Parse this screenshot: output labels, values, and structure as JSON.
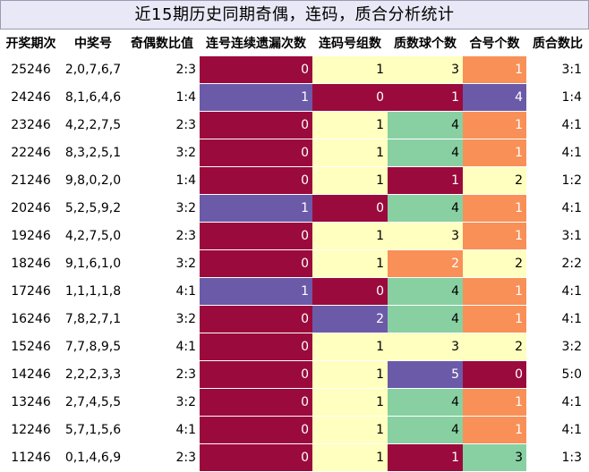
{
  "title": "近15期历史同期奇偶，连码，质合分析统计",
  "headers": [
    "开奖期次",
    "中奖号",
    "奇偶数比值",
    "连号连续遗漏次数",
    "连码号组数",
    "质数球个数",
    "合号个数",
    "质合数比"
  ],
  "colors": {
    "maroon": "#9b0a3c",
    "purple": "#6b5aa8",
    "cream": "#ffffbf",
    "green": "#88d0a2",
    "orange": "#f89058"
  },
  "rows": [
    {
      "period": "25246",
      "numbers": "2,0,7,6,7",
      "odd_even": "2:3",
      "streak": "0",
      "streak_color": "maroon",
      "groups": "1",
      "groups_color": "cream",
      "primes": "3",
      "primes_color": "cream",
      "composites": "1",
      "composites_color": "orange",
      "ratio": "3:1"
    },
    {
      "period": "24246",
      "numbers": "8,1,6,4,6",
      "odd_even": "1:4",
      "streak": "1",
      "streak_color": "purple",
      "groups": "0",
      "groups_color": "maroon",
      "primes": "1",
      "primes_color": "maroon",
      "composites": "4",
      "composites_color": "purple",
      "ratio": "1:4"
    },
    {
      "period": "23246",
      "numbers": "4,2,2,7,5",
      "odd_even": "2:3",
      "streak": "0",
      "streak_color": "maroon",
      "groups": "1",
      "groups_color": "cream",
      "primes": "4",
      "primes_color": "green",
      "composites": "1",
      "composites_color": "orange",
      "ratio": "4:1"
    },
    {
      "period": "22246",
      "numbers": "8,3,2,5,1",
      "odd_even": "3:2",
      "streak": "0",
      "streak_color": "maroon",
      "groups": "1",
      "groups_color": "cream",
      "primes": "4",
      "primes_color": "green",
      "composites": "1",
      "composites_color": "orange",
      "ratio": "4:1"
    },
    {
      "period": "21246",
      "numbers": "9,8,0,2,0",
      "odd_even": "1:4",
      "streak": "0",
      "streak_color": "maroon",
      "groups": "1",
      "groups_color": "cream",
      "primes": "1",
      "primes_color": "maroon",
      "composites": "2",
      "composites_color": "cream",
      "ratio": "1:2"
    },
    {
      "period": "20246",
      "numbers": "5,2,5,9,2",
      "odd_even": "3:2",
      "streak": "1",
      "streak_color": "purple",
      "groups": "0",
      "groups_color": "maroon",
      "primes": "4",
      "primes_color": "green",
      "composites": "1",
      "composites_color": "orange",
      "ratio": "4:1"
    },
    {
      "period": "19246",
      "numbers": "4,2,7,5,0",
      "odd_even": "2:3",
      "streak": "0",
      "streak_color": "maroon",
      "groups": "1",
      "groups_color": "cream",
      "primes": "3",
      "primes_color": "cream",
      "composites": "1",
      "composites_color": "orange",
      "ratio": "3:1"
    },
    {
      "period": "18246",
      "numbers": "9,1,6,1,0",
      "odd_even": "3:2",
      "streak": "0",
      "streak_color": "maroon",
      "groups": "1",
      "groups_color": "cream",
      "primes": "2",
      "primes_color": "orange",
      "composites": "2",
      "composites_color": "cream",
      "ratio": "2:2"
    },
    {
      "period": "17246",
      "numbers": "1,1,1,1,8",
      "odd_even": "4:1",
      "streak": "1",
      "streak_color": "purple",
      "groups": "0",
      "groups_color": "maroon",
      "primes": "4",
      "primes_color": "green",
      "composites": "1",
      "composites_color": "orange",
      "ratio": "4:1"
    },
    {
      "period": "16246",
      "numbers": "7,8,2,7,1",
      "odd_even": "3:2",
      "streak": "0",
      "streak_color": "maroon",
      "groups": "2",
      "groups_color": "purple",
      "primes": "4",
      "primes_color": "green",
      "composites": "1",
      "composites_color": "orange",
      "ratio": "4:1"
    },
    {
      "period": "15246",
      "numbers": "7,7,8,9,5",
      "odd_even": "4:1",
      "streak": "0",
      "streak_color": "maroon",
      "groups": "1",
      "groups_color": "cream",
      "primes": "3",
      "primes_color": "cream",
      "composites": "2",
      "composites_color": "cream",
      "ratio": "3:2"
    },
    {
      "period": "14246",
      "numbers": "2,2,2,3,3",
      "odd_even": "2:3",
      "streak": "0",
      "streak_color": "maroon",
      "groups": "1",
      "groups_color": "cream",
      "primes": "5",
      "primes_color": "purple",
      "composites": "0",
      "composites_color": "maroon",
      "ratio": "5:0"
    },
    {
      "period": "13246",
      "numbers": "2,7,4,5,5",
      "odd_even": "3:2",
      "streak": "0",
      "streak_color": "maroon",
      "groups": "1",
      "groups_color": "cream",
      "primes": "4",
      "primes_color": "green",
      "composites": "1",
      "composites_color": "orange",
      "ratio": "4:1"
    },
    {
      "period": "12246",
      "numbers": "5,7,1,5,6",
      "odd_even": "4:1",
      "streak": "0",
      "streak_color": "maroon",
      "groups": "1",
      "groups_color": "cream",
      "primes": "4",
      "primes_color": "green",
      "composites": "1",
      "composites_color": "orange",
      "ratio": "4:1"
    },
    {
      "period": "11246",
      "numbers": "0,1,4,6,9",
      "odd_even": "2:3",
      "streak": "0",
      "streak_color": "maroon",
      "groups": "1",
      "groups_color": "cream",
      "primes": "1",
      "primes_color": "maroon",
      "composites": "3",
      "composites_color": "green",
      "ratio": "1:3"
    }
  ]
}
